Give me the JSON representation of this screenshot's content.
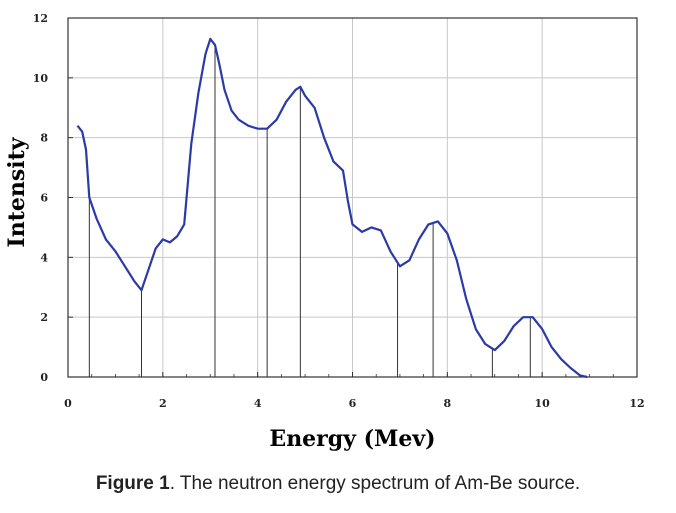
{
  "chart_data": {
    "type": "line",
    "xlabel": "Energy (Mev)",
    "ylabel": "Intensity",
    "xlim": [
      0,
      12
    ],
    "ylim": [
      0,
      12
    ],
    "x_ticks": [
      "0",
      "2",
      "4",
      "6",
      "8",
      "10",
      "12"
    ],
    "y_ticks": [
      "0",
      "2",
      "4",
      "6",
      "8",
      "10",
      "12"
    ],
    "grid": "horizontal and vertical",
    "line_color": "#2b3aa6",
    "series": [
      {
        "x": [
          0.2,
          0.3,
          0.38,
          0.45,
          0.6,
          0.8,
          1.0,
          1.2,
          1.4,
          1.55,
          1.7,
          1.85,
          2.0,
          2.15,
          2.3,
          2.45,
          2.6,
          2.75,
          2.9,
          3.0,
          3.1,
          3.2,
          3.3,
          3.45,
          3.6,
          3.8,
          4.0,
          4.2,
          4.4,
          4.6,
          4.8,
          4.9,
          5.0,
          5.2,
          5.4,
          5.6,
          5.8,
          5.9,
          6.0,
          6.2,
          6.4,
          6.6,
          6.8,
          7.0,
          7.2,
          7.4,
          7.6,
          7.8,
          8.0,
          8.2,
          8.4,
          8.6,
          8.8,
          9.0,
          9.2,
          9.4,
          9.6,
          9.8,
          10.0,
          10.2,
          10.4,
          10.6,
          10.8,
          10.95
        ],
        "y": [
          8.4,
          8.2,
          7.6,
          6.0,
          5.3,
          4.6,
          4.2,
          3.7,
          3.2,
          2.9,
          3.6,
          4.3,
          4.6,
          4.5,
          4.7,
          5.1,
          7.8,
          9.5,
          10.8,
          11.3,
          11.1,
          10.4,
          9.6,
          8.9,
          8.6,
          8.4,
          8.3,
          8.3,
          8.6,
          9.2,
          9.6,
          9.7,
          9.4,
          9.0,
          8.0,
          7.2,
          6.9,
          5.9,
          5.1,
          4.85,
          5.0,
          4.9,
          4.2,
          3.7,
          3.9,
          4.6,
          5.1,
          5.2,
          4.8,
          3.9,
          2.6,
          1.6,
          1.1,
          0.9,
          1.2,
          1.7,
          2.0,
          2.0,
          1.6,
          1.0,
          0.6,
          0.3,
          0.05,
          0.0
        ]
      }
    ],
    "marker_lines_x": [
      0.45,
      1.55,
      3.1,
      4.2,
      4.9,
      6.95,
      7.7,
      8.95,
      9.75
    ]
  },
  "caption": {
    "number": "Figure 1",
    "text": ". The neutron energy spectrum of Am-Be source."
  }
}
